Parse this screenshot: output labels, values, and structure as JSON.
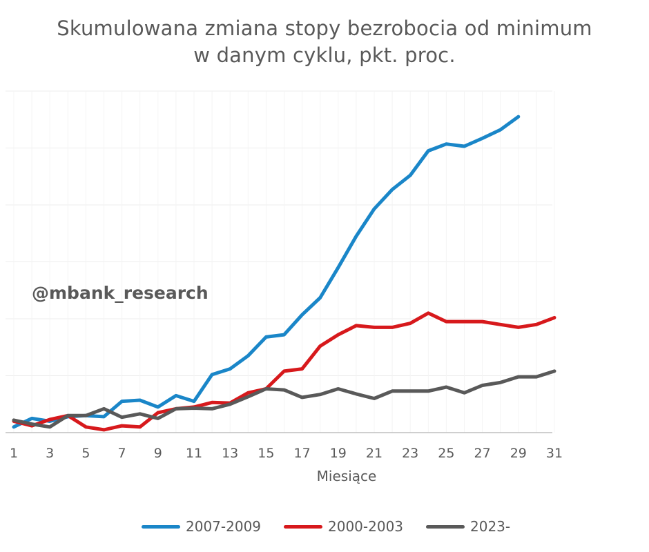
{
  "watermark": "@mbank_research",
  "chart_data": {
    "type": "line",
    "title_lines": [
      "Skumulowana zmiana stopy bezrobocia od minimum",
      "w danym cyklu, pkt. proc."
    ],
    "xlabel": "Miesiące",
    "ylabel": "",
    "x": [
      1,
      2,
      3,
      4,
      5,
      6,
      7,
      8,
      9,
      10,
      11,
      12,
      13,
      14,
      15,
      16,
      17,
      18,
      19,
      20,
      21,
      22,
      23,
      24,
      25,
      26,
      27,
      28,
      29,
      30,
      31
    ],
    "x_tick_labels": [
      "1",
      "3",
      "5",
      "7",
      "9",
      "11",
      "13",
      "15",
      "17",
      "19",
      "21",
      "23",
      "25",
      "27",
      "29",
      "31"
    ],
    "ylim": [
      0,
      6
    ],
    "y_grid_step": 1,
    "grid": true,
    "legend_position": "bottom",
    "series": [
      {
        "name": "2007-2009",
        "color": "#1a86c8",
        "values": [
          0.1,
          0.25,
          0.2,
          0.28,
          0.3,
          0.28,
          0.55,
          0.57,
          0.45,
          0.65,
          0.55,
          1.02,
          1.12,
          1.35,
          1.68,
          1.72,
          2.07,
          2.37,
          2.9,
          3.45,
          3.93,
          4.27,
          4.52,
          4.95,
          5.07,
          5.03,
          5.17,
          5.32,
          5.55,
          null,
          null
        ]
      },
      {
        "name": "2000-2003",
        "color": "#d7191c",
        "values": [
          0.2,
          0.12,
          0.23,
          0.3,
          0.1,
          0.05,
          0.12,
          0.1,
          0.35,
          0.42,
          0.45,
          0.53,
          0.52,
          0.7,
          0.77,
          1.08,
          1.12,
          1.52,
          1.72,
          1.88,
          1.85,
          1.85,
          1.92,
          2.1,
          1.95,
          1.95,
          1.95,
          1.9,
          1.85,
          1.9,
          2.02
        ]
      },
      {
        "name": "2023-",
        "color": "#595959",
        "values": [
          0.22,
          0.15,
          0.1,
          0.3,
          0.3,
          0.42,
          0.27,
          0.33,
          0.25,
          0.42,
          0.43,
          0.42,
          0.5,
          0.63,
          0.77,
          0.75,
          0.62,
          0.67,
          0.77,
          0.68,
          0.6,
          0.73,
          0.73,
          0.73,
          0.8,
          0.7,
          0.83,
          0.88,
          0.98,
          0.98,
          1.08
        ]
      }
    ]
  }
}
